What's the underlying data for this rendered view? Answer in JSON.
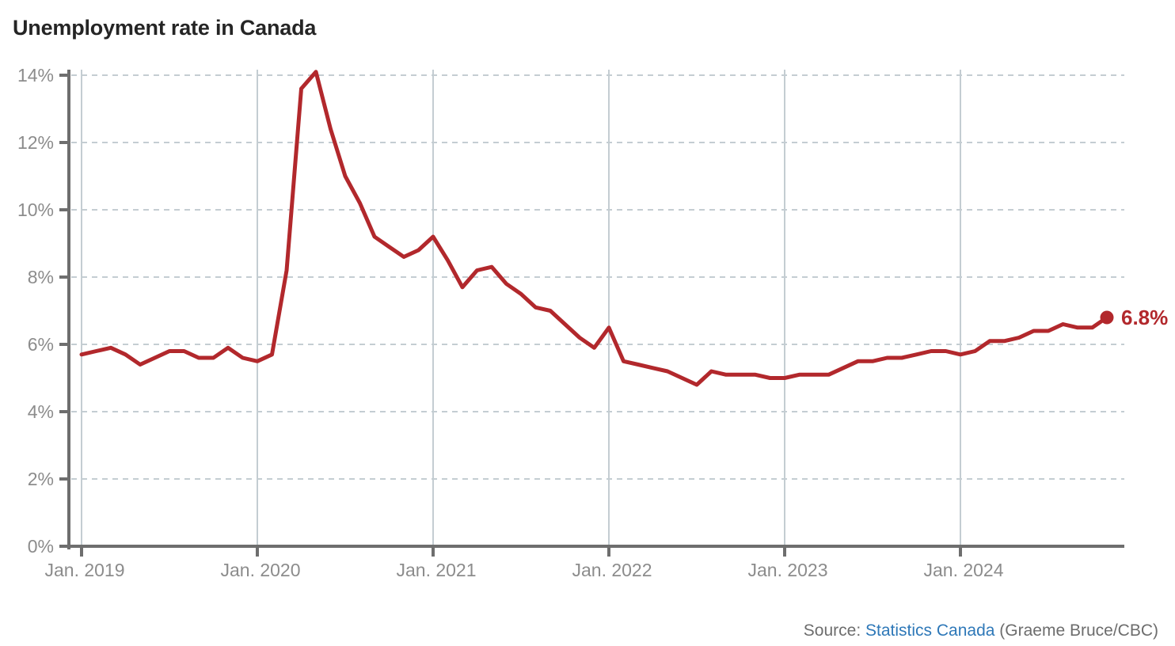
{
  "title": "Unemployment rate in Canada",
  "end_label": "6.8%",
  "source": {
    "prefix": "Source:",
    "link": "Statistics Canada",
    "credit": "(Graeme Bruce/CBC)"
  },
  "colors": {
    "line": "#b2282c",
    "end_dot": "#b2282c",
    "end_label": "#b2282c",
    "axis": "#6e6e6e",
    "tick_label": "#8c8c8c",
    "grid": "#c4cdd2",
    "title_text": "#252525",
    "source_text": "#6d6d6d",
    "source_link": "#2e78b8",
    "background": "#ffffff"
  },
  "chart_data": {
    "type": "line",
    "title": "Unemployment rate in Canada",
    "series_name": "Unemployment rate (%)",
    "unit": "%",
    "frequency": "monthly",
    "start_month": "Jan. 2019",
    "end_month": "Nov. 2024",
    "x_tick_labels": [
      "Jan. 2019",
      "Jan. 2020",
      "Jan. 2021",
      "Jan. 2022",
      "Jan. 2023",
      "Jan. 2024"
    ],
    "y_tick_labels": [
      "0%",
      "2%",
      "4%",
      "6%",
      "8%",
      "10%",
      "12%",
      "14%"
    ],
    "ylim": [
      0,
      14
    ],
    "grid": "horizontal dashed lines every 2%, solid vertical line each January",
    "legend": "none",
    "last_point_annotation": "6.8%",
    "values": [
      5.7,
      5.8,
      5.9,
      5.7,
      5.4,
      5.6,
      5.8,
      5.8,
      5.6,
      5.6,
      5.9,
      5.6,
      5.5,
      5.7,
      8.2,
      13.6,
      14.1,
      12.4,
      11.0,
      10.2,
      9.2,
      8.9,
      8.6,
      8.8,
      9.2,
      8.5,
      7.7,
      8.2,
      8.3,
      7.8,
      7.5,
      7.1,
      7.0,
      6.6,
      6.2,
      5.9,
      6.5,
      5.5,
      5.4,
      5.3,
      5.2,
      5.0,
      4.8,
      5.2,
      5.1,
      5.1,
      5.1,
      5.0,
      5.0,
      5.1,
      5.1,
      5.1,
      5.3,
      5.5,
      5.5,
      5.6,
      5.6,
      5.7,
      5.8,
      5.8,
      5.7,
      5.8,
      6.1,
      6.1,
      6.2,
      6.4,
      6.4,
      6.6,
      6.5,
      6.5,
      6.8
    ]
  }
}
